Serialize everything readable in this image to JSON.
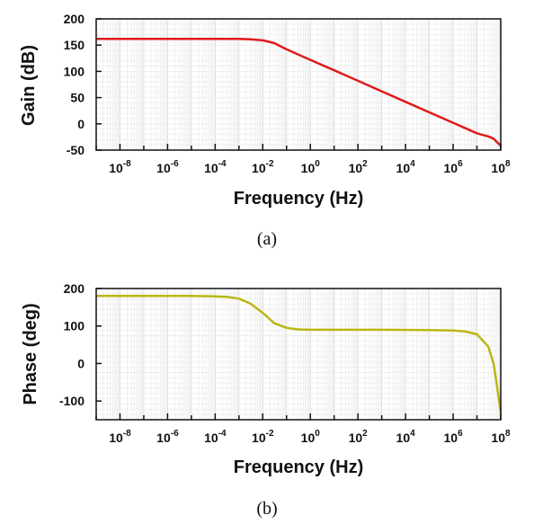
{
  "chart_data": [
    {
      "type": "line",
      "caption": "(a)",
      "xlabel": "Frequency (Hz)",
      "ylabel": "Gain (dB)",
      "xscale": "log",
      "xlim": [
        1e-09,
        100000000.0
      ],
      "ylim": [
        -50,
        200
      ],
      "xticks": [
        -8,
        -6,
        -4,
        -2,
        0,
        2,
        4,
        6,
        8
      ],
      "yticks": [
        200,
        150,
        100,
        50,
        0,
        -50
      ],
      "grid": true,
      "color": "#e01b1b",
      "series": [
        {
          "x": [
            1e-09,
            1e-08,
            1e-07,
            1e-06,
            1e-05,
            0.0001,
            0.001,
            0.003,
            0.01,
            0.03,
            0.1,
            1,
            10,
            100,
            1000,
            10000.0,
            100000.0,
            1000000.0,
            10000000.0,
            30000000.0,
            50000000.0,
            100000000.0
          ],
          "y": [
            162,
            162,
            162,
            162,
            162,
            162,
            162,
            161,
            159,
            154,
            142,
            122,
            102,
            82,
            62,
            42,
            22,
            2,
            -18,
            -24,
            -28,
            -42
          ]
        }
      ]
    },
    {
      "type": "line",
      "caption": "(b)",
      "xlabel": "Frequency (Hz)",
      "ylabel": "Phase (deg)",
      "xscale": "log",
      "xlim": [
        1e-09,
        100000000.0
      ],
      "ylim": [
        -150,
        200
      ],
      "xticks": [
        -8,
        -6,
        -4,
        -2,
        0,
        2,
        4,
        6,
        8
      ],
      "yticks": [
        200,
        100,
        0,
        -100
      ],
      "grid": true,
      "color": "#b8b814",
      "series": [
        {
          "x": [
            1e-09,
            1e-06,
            1e-05,
            0.0001,
            0.0003,
            0.001,
            0.003,
            0.01,
            0.03,
            0.1,
            0.3,
            1,
            10,
            1000.0,
            100000.0,
            1000000.0,
            3000000.0,
            10000000.0,
            30000000.0,
            50000000.0,
            70000000.0,
            100000000.0
          ],
          "y": [
            180,
            180,
            180,
            179,
            178,
            173,
            160,
            135,
            108,
            95,
            91,
            90,
            90,
            90,
            89,
            88,
            86,
            78,
            45,
            0,
            -60,
            -130
          ]
        }
      ]
    }
  ]
}
